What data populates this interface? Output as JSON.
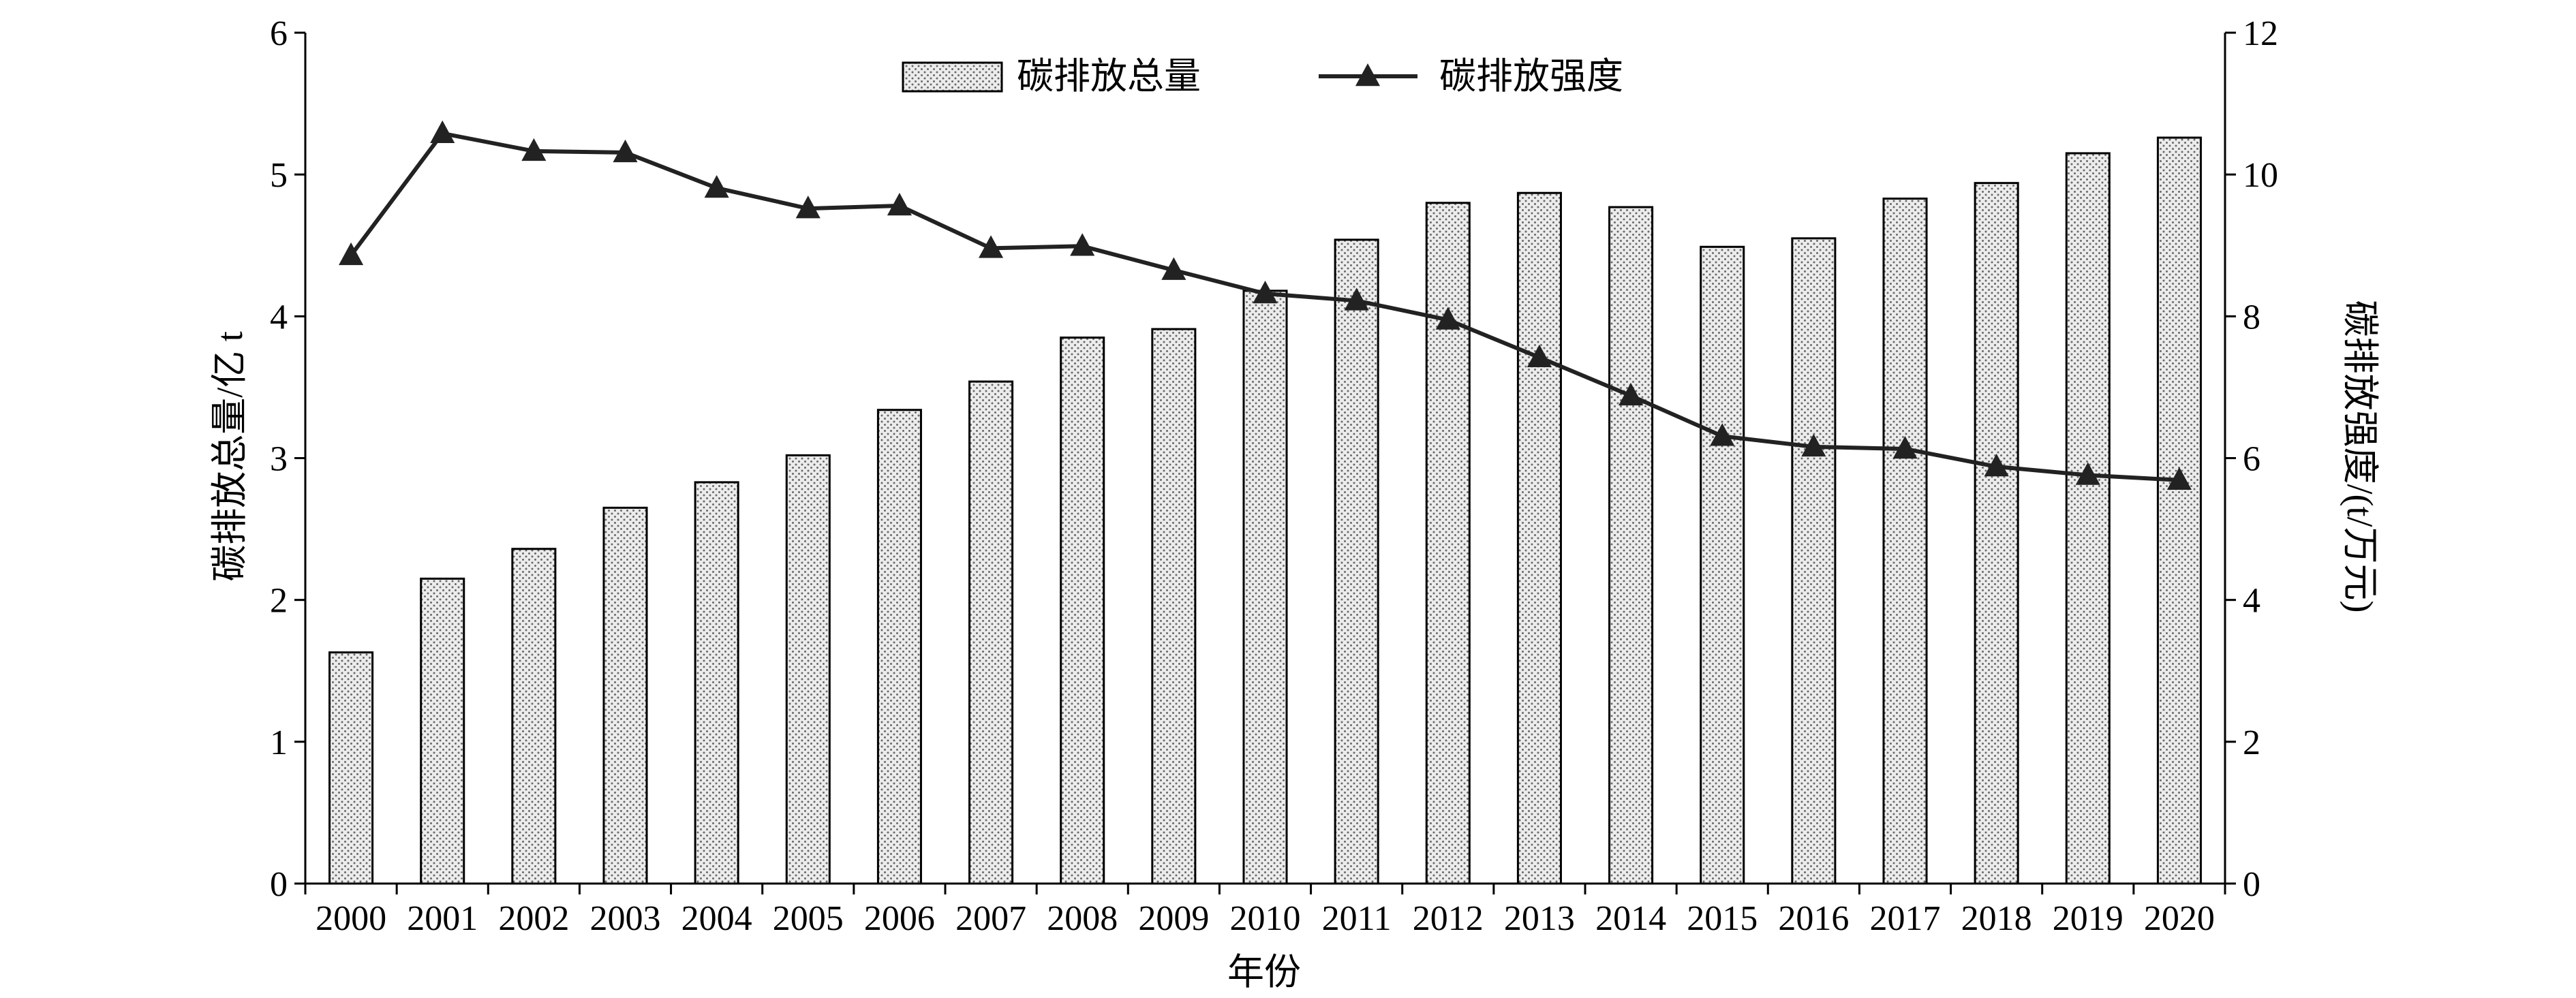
{
  "chart_data": {
    "type": "bar",
    "categories": [
      "2000",
      "2001",
      "2002",
      "2003",
      "2004",
      "2005",
      "2006",
      "2007",
      "2008",
      "2009",
      "2010",
      "2011",
      "2012",
      "2013",
      "2014",
      "2015",
      "2016",
      "2017",
      "2018",
      "2019",
      "2020"
    ],
    "series": [
      {
        "name": "碳排放总量",
        "type": "bar",
        "axis": "left",
        "values": [
          1.63,
          2.15,
          2.36,
          2.65,
          2.83,
          3.02,
          3.34,
          3.54,
          3.85,
          3.91,
          4.18,
          4.54,
          4.8,
          4.87,
          4.77,
          4.49,
          4.55,
          4.83,
          4.94,
          5.15,
          5.26
        ]
      },
      {
        "name": "碳排放强度",
        "type": "line",
        "axis": "right",
        "marker": "triangle",
        "values": [
          8.86,
          10.58,
          10.33,
          10.31,
          9.81,
          9.52,
          9.56,
          8.96,
          8.99,
          8.65,
          8.32,
          8.22,
          7.95,
          7.42,
          6.88,
          6.31,
          6.16,
          6.13,
          5.88,
          5.76,
          5.69
        ]
      }
    ],
    "xlabel": "年份",
    "ylabel": "碳排放总量/亿 t",
    "y2label": "碳排放强度/(t/万元)",
    "ylim": [
      0,
      6
    ],
    "y2lim": [
      0,
      12
    ],
    "yticks": [
      "0",
      "1",
      "2",
      "3",
      "4",
      "5",
      "6"
    ],
    "y2ticks": [
      "0",
      "2",
      "4",
      "6",
      "8",
      "10",
      "12"
    ],
    "grid": false,
    "legend": "top-center",
    "colors": {
      "bar_fill": "#ececec",
      "bar_dots": "#6a6a6a",
      "line": "#222222"
    }
  }
}
